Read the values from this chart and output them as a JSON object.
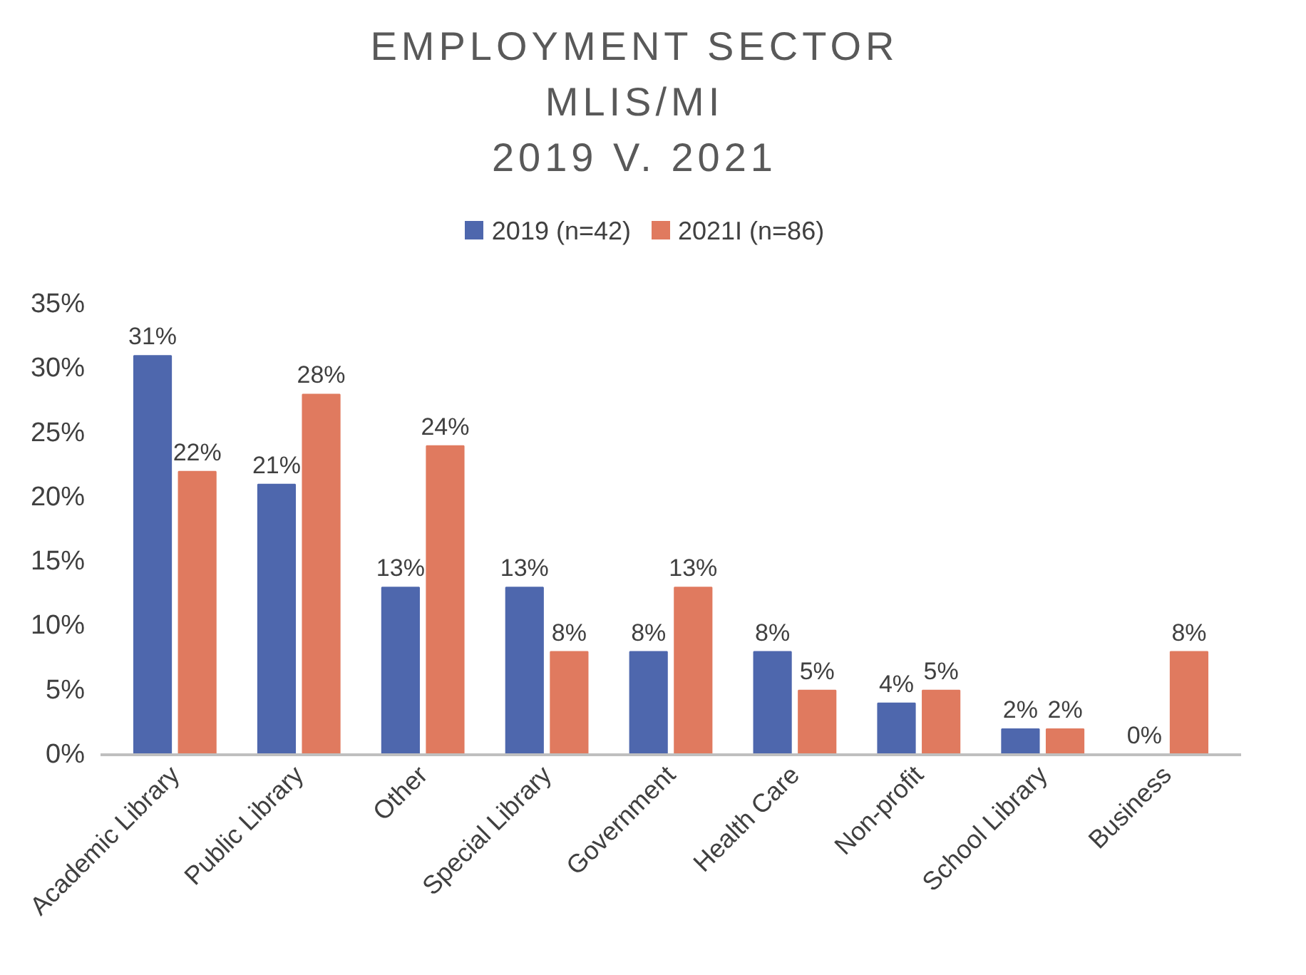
{
  "chart_data": {
    "type": "bar",
    "title": "EMPLOYMENT SECTOR\nMLIS/MI\n2019 V. 2021",
    "categories": [
      "Academic Library",
      "Public Library",
      "Other",
      "Special Library",
      "Government",
      "Health Care",
      "Non-profit",
      "School Library",
      "Business"
    ],
    "series": [
      {
        "name": "2019 (n=42)",
        "color": "#4e67ad",
        "values": [
          31,
          21,
          13,
          13,
          8,
          8,
          4,
          2,
          0
        ],
        "value_labels": [
          "31%",
          "21%",
          "13%",
          "13%",
          "8%",
          "8%",
          "4%",
          "2%",
          "0%"
        ]
      },
      {
        "name": "2021I (n=86)",
        "color": "#e07a5f",
        "values": [
          22,
          28,
          24,
          8,
          13,
          5,
          5,
          2,
          8
        ],
        "value_labels": [
          "22%",
          "28%",
          "24%",
          "8%",
          "13%",
          "5%",
          "5%",
          "2%",
          "8%"
        ]
      }
    ],
    "ylim": [
      0,
      35
    ],
    "yticks": [
      {
        "value": 0,
        "label": "0%"
      },
      {
        "value": 5,
        "label": "5%"
      },
      {
        "value": 10,
        "label": "10%"
      },
      {
        "value": 15,
        "label": "15%"
      },
      {
        "value": 20,
        "label": "20%"
      },
      {
        "value": 25,
        "label": "25%"
      },
      {
        "value": 30,
        "label": "30%"
      },
      {
        "value": 35,
        "label": "35%"
      }
    ],
    "grid": false,
    "legend": "top"
  }
}
